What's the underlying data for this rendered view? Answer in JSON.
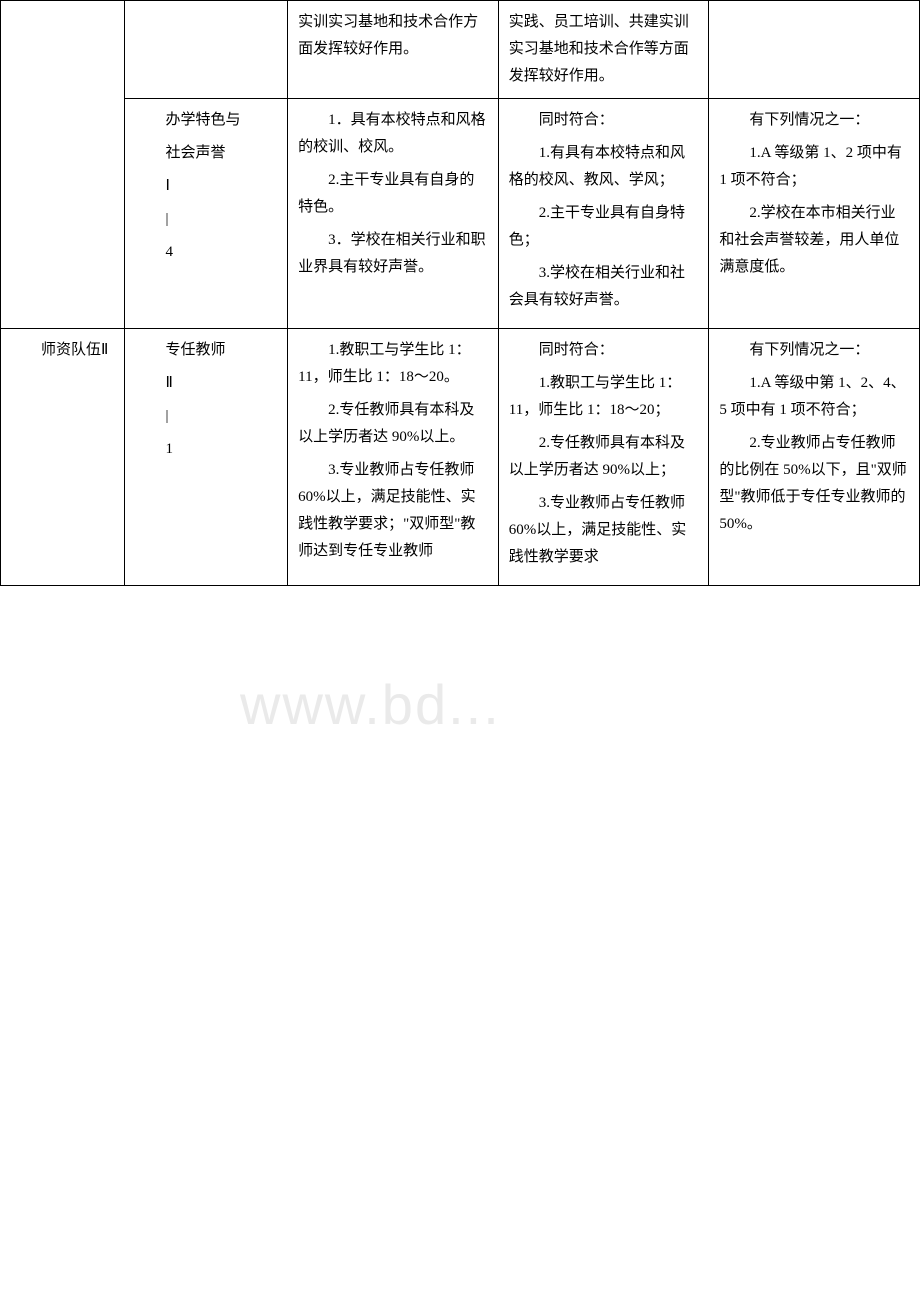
{
  "watermark": "www.bd...",
  "table": {
    "rows": [
      {
        "col1": "",
        "col2": "",
        "col3": "实训实习基地和技术合作方面发挥较好作用。",
        "col4": "实践、员工培训、共建实训实习基地和技术合作等方面发挥较好作用。",
        "col5": "",
        "col1_rowspan": 1,
        "col2_rowspan": 1
      },
      {
        "col1": "",
        "col2_lines": [
          "办学特色与",
          "社会声誉",
          "Ⅰ",
          "|",
          "4"
        ],
        "col3_paras": [
          "1．具有本校特点和风格的校训、校风。",
          "2.主干专业具有自身的特色。",
          "3．学校在相关行业和职业界具有较好声誉。"
        ],
        "col4_intro": "同时符合：",
        "col4_paras": [
          "1.有具有本校特点和风格的校风、教风、学风；",
          "2.主干专业具有自身特色；",
          "3.学校在相关行业和社会具有较好声誉。"
        ],
        "col5_intro": "有下列情况之一：",
        "col5_paras": [
          "1.A 等级第 1、2 项中有 1 项不符合；",
          "2.学校在本市相关行业和社会声誉较差，用人单位满意度低。"
        ]
      },
      {
        "col1_lines": [
          "师资队伍Ⅱ"
        ],
        "col2_lines": [
          "专任教师",
          "Ⅱ",
          "|",
          "1"
        ],
        "col3_paras": [
          "1.教职工与学生比 1：11，师生比 1：18～20。",
          "2.专任教师具有本科及以上学历者达 90%以上。",
          "3.专业教师占专任教师 60%以上，满足技能性、实践性教学要求；\"双师型\"教师达到专任专业教师"
        ],
        "col4_intro": "同时符合：",
        "col4_paras": [
          "1.教职工与学生比 1：11，师生比 1：18～20；",
          "2.专任教师具有本科及以上学历者达 90%以上；",
          "3.专业教师占专任教师 60%以上，满足技能性、实践性教学要求"
        ],
        "col5_intro": "有下列情况之一：",
        "col5_paras": [
          "1.A 等级中第 1、2、4、5 项中有 1 项不符合；",
          "2.专业教师占专任教师的比例在 50%以下，且\"双师型\"教师低于专任专业教师的 50%。"
        ]
      }
    ]
  }
}
